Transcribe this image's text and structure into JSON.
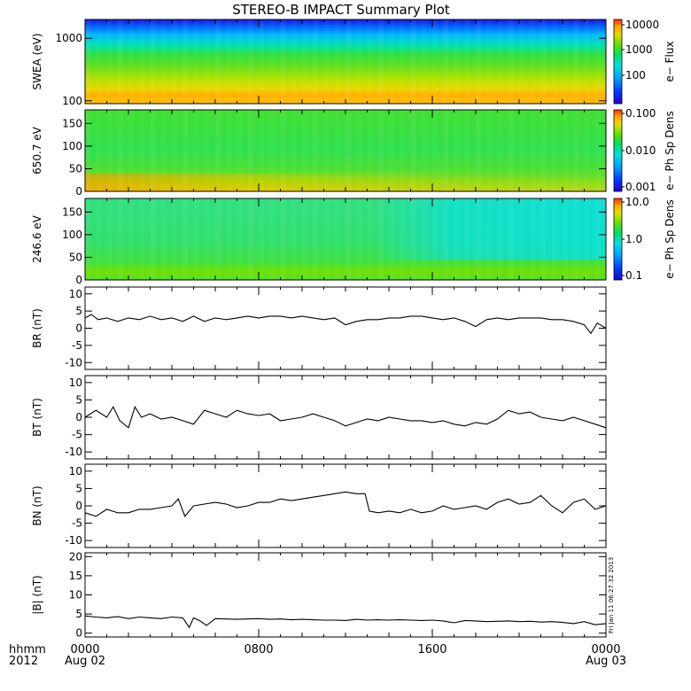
{
  "title": "STEREO-B IMPACT Summary Plot",
  "footer": {
    "row1_left": "hhmm",
    "row2_left": "2012",
    "x_ticks": [
      "0000",
      "0800",
      "1600",
      "0000"
    ],
    "x_dates": [
      "Aug 02",
      "",
      "",
      "Aug 03"
    ],
    "timestamp": "Fri Jan 11 06:27:32 2013"
  },
  "colors": {
    "line": "#000000",
    "spectrogram_scale": [
      "#2200cc",
      "#0040ff",
      "#00a0ff",
      "#00e0e0",
      "#00e060",
      "#60e000",
      "#e0e000",
      "#ffa000",
      "#ff3000"
    ]
  },
  "chart_data": [
    {
      "type": "heatmap",
      "name": "swea",
      "ylabel": "SWEA (eV)",
      "yscale": "log",
      "ylim": [
        90,
        2000
      ],
      "yticks": [
        100,
        1000
      ],
      "ytick_labels": [
        "100",
        "1000"
      ],
      "colorbar": {
        "label": "e− Flux",
        "scale": "log",
        "ticks": [
          "10000",
          "1000",
          "100"
        ]
      },
      "description_rows": [
        {
          "energy": 1800,
          "color": "#1010e0"
        },
        {
          "energy": 1300,
          "color": "#00a0ff"
        },
        {
          "energy": 900,
          "color": "#00e0c0"
        },
        {
          "energy": 600,
          "color": "#30e030"
        },
        {
          "energy": 350,
          "color": "#80e000"
        },
        {
          "energy": 200,
          "color": "#d0e000"
        },
        {
          "energy": 120,
          "color": "#ffb000"
        }
      ]
    },
    {
      "type": "heatmap",
      "name": "pad_650",
      "ylabel": "650.7 eV",
      "ylim": [
        0,
        180
      ],
      "yticks": [
        0,
        50,
        100,
        150
      ],
      "colorbar": {
        "label": "e− Ph Sp Dens",
        "scale": "log",
        "ticks": [
          "0.100",
          "0.010",
          "0.001"
        ]
      }
    },
    {
      "type": "heatmap",
      "name": "pad_246",
      "ylabel": "246.6 eV",
      "ylim": [
        0,
        180
      ],
      "yticks": [
        0,
        50,
        100,
        150
      ],
      "colorbar": {
        "label": "e− Ph Sp Dens",
        "scale": "log",
        "ticks": [
          "10.0",
          "1.0",
          "0.1"
        ]
      }
    },
    {
      "type": "line",
      "name": "br",
      "ylabel": "B_R (nT)",
      "ylim": [
        -12,
        12
      ],
      "yticks": [
        -10,
        -5,
        0,
        5,
        10
      ],
      "x_hours": [
        0,
        0.3,
        0.6,
        1,
        1.5,
        2,
        2.5,
        3,
        3.5,
        4,
        4.5,
        5,
        5.5,
        6,
        6.5,
        7,
        7.5,
        8,
        8.5,
        9,
        9.5,
        10,
        10.5,
        11,
        11.5,
        12,
        12.5,
        13,
        13.5,
        14,
        14.5,
        15,
        15.5,
        16,
        16.5,
        17,
        17.5,
        18,
        18.5,
        19,
        19.5,
        20,
        20.5,
        21,
        21.5,
        22,
        22.5,
        23,
        23.3,
        23.6,
        24
      ],
      "values": [
        3,
        4,
        2.5,
        3,
        2,
        3,
        2.5,
        3.5,
        2.5,
        3,
        2,
        3.5,
        2,
        3,
        2.5,
        3,
        3.5,
        3,
        3.5,
        3.5,
        3,
        3.5,
        3,
        2.5,
        3,
        1,
        2,
        2.5,
        2.5,
        3,
        3,
        3.5,
        3.5,
        3,
        2.5,
        3,
        2,
        0.5,
        2.5,
        3,
        2.5,
        3,
        3,
        3,
        2.5,
        2.5,
        2,
        1,
        -1.5,
        1.5,
        0
      ]
    },
    {
      "type": "line",
      "name": "bt",
      "ylabel": "B_T (nT)",
      "ylim": [
        -12,
        12
      ],
      "yticks": [
        -10,
        -5,
        0,
        5,
        10
      ],
      "x_hours": [
        0,
        0.5,
        1,
        1.3,
        1.6,
        2,
        2.3,
        2.6,
        3,
        3.5,
        4,
        4.5,
        5,
        5.5,
        6,
        6.5,
        7,
        7.5,
        8,
        8.5,
        9,
        9.5,
        10,
        10.5,
        11,
        11.5,
        12,
        12.5,
        13,
        13.5,
        14,
        14.5,
        15,
        15.5,
        16,
        16.5,
        17,
        17.5,
        18,
        18.5,
        19,
        19.5,
        20,
        20.5,
        21,
        21.5,
        22,
        22.5,
        23,
        23.5,
        24
      ],
      "values": [
        0,
        2,
        0,
        3,
        -1,
        -3,
        3,
        0,
        1,
        -0.5,
        0,
        -1,
        -2,
        2,
        1,
        0,
        2,
        1,
        0.5,
        1,
        -1,
        -0.5,
        0,
        1,
        0,
        -1,
        -2.5,
        -1.5,
        -0.5,
        -1,
        0,
        -0.5,
        -1,
        -1,
        -1.5,
        -1,
        -2,
        -2.5,
        -1.5,
        -2,
        -0.5,
        2,
        1,
        1.5,
        0,
        -0.5,
        -1,
        0,
        -1,
        -2,
        -3
      ]
    },
    {
      "type": "line",
      "name": "bn",
      "ylabel": "B_N (nT)",
      "ylim": [
        -12,
        12
      ],
      "yticks": [
        -10,
        -5,
        0,
        5,
        10
      ],
      "x_hours": [
        0,
        0.5,
        1,
        1.5,
        2,
        2.5,
        3,
        3.5,
        4,
        4.3,
        4.6,
        5,
        5.5,
        6,
        6.5,
        7,
        7.5,
        8,
        8.5,
        9,
        9.5,
        10,
        10.5,
        11,
        11.5,
        12,
        12.5,
        12.9,
        13.1,
        13.5,
        14,
        14.5,
        15,
        15.5,
        16,
        16.5,
        17,
        17.5,
        18,
        18.5,
        19,
        19.5,
        20,
        20.5,
        21,
        21.5,
        22,
        22.5,
        23,
        23.5,
        24
      ],
      "values": [
        -2,
        -3,
        -1,
        -2,
        -2,
        -1,
        -1,
        -0.5,
        0,
        2,
        -3,
        0,
        0.5,
        1,
        0.5,
        -0.5,
        0,
        1,
        1,
        2,
        1.5,
        2,
        2.5,
        3,
        3.5,
        4,
        3.5,
        3.5,
        -1.5,
        -2,
        -1.5,
        -2,
        -1,
        -2,
        -1.5,
        0,
        -1,
        -0.5,
        0,
        -1,
        1,
        2,
        0.5,
        1,
        3,
        0,
        -2,
        1,
        2,
        -1,
        0
      ]
    },
    {
      "type": "line",
      "name": "btot",
      "ylabel": "|B| (nT)",
      "ylim": [
        -1,
        21
      ],
      "yticks": [
        0,
        5,
        10,
        15,
        20
      ],
      "x_hours": [
        0,
        0.5,
        1,
        1.5,
        2,
        2.5,
        3,
        3.5,
        4,
        4.5,
        4.8,
        5,
        5.3,
        5.6,
        6,
        6.5,
        7,
        7.5,
        8,
        8.5,
        9,
        9.5,
        10,
        10.5,
        11,
        11.5,
        12,
        12.5,
        13,
        13.5,
        14,
        14.5,
        15,
        15.5,
        16,
        16.5,
        17,
        17.5,
        18,
        18.5,
        19,
        19.5,
        20,
        20.5,
        21,
        21.5,
        22,
        22.5,
        23,
        23.5,
        24
      ],
      "values": [
        4.5,
        4.2,
        4,
        4.3,
        3.8,
        4.2,
        4,
        3.8,
        4.2,
        4,
        1.5,
        4,
        3.2,
        2,
        3.8,
        3.7,
        3.6,
        3.7,
        3.8,
        3.6,
        3.7,
        3.5,
        3.6,
        3.5,
        3.4,
        3.4,
        3.3,
        3.6,
        3.4,
        3.5,
        3.4,
        3.5,
        3.4,
        3.3,
        3.4,
        3.2,
        2.7,
        3.3,
        3.2,
        3.0,
        3.1,
        3.2,
        3.0,
        3.1,
        2.9,
        3.0,
        2.8,
        2.5,
        3.0,
        2.2,
        2.5
      ]
    }
  ]
}
